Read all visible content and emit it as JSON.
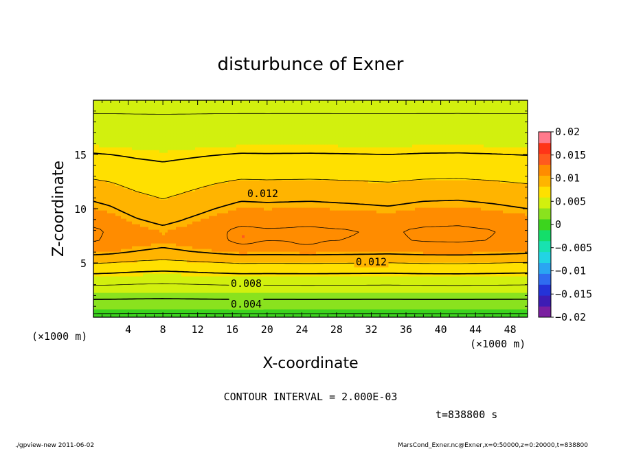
{
  "chart_data": {
    "type": "heatmap",
    "title": "disturbunce of Exner",
    "xlabel": "X-coordinate",
    "ylabel": "Z-coordinate",
    "x_unit": "(×1000 m)",
    "y_unit": "(×1000 m)",
    "xlim": [
      0,
      50
    ],
    "ylim": [
      0,
      20
    ],
    "xticks": [
      4,
      8,
      12,
      16,
      20,
      24,
      28,
      32,
      36,
      40,
      44,
      48
    ],
    "yticks": [
      5,
      10,
      15
    ],
    "contour_interval_label": "CONTOUR INTERVAL = 2.000E-03",
    "time_label": "t=838800 s",
    "contour_labels": [
      {
        "text": "0.012",
        "x": 19.5,
        "y": 11.4
      },
      {
        "text": "0.012",
        "x": 32.0,
        "y": 5.1
      },
      {
        "text": "0.008",
        "x": 17.6,
        "y": 3.1
      },
      {
        "text": "0.004",
        "x": 17.6,
        "y": 1.2
      }
    ],
    "colorbar": {
      "levels": [
        -0.02,
        -0.0175,
        -0.015,
        -0.0125,
        -0.01,
        -0.0075,
        -0.005,
        -0.0025,
        0,
        0.0025,
        0.005,
        0.0075,
        0.01,
        0.0125,
        0.015,
        0.0175,
        0.02
      ],
      "tick_labels": [
        "0.02",
        "0.015",
        "0.01",
        "0.005",
        "0",
        "−0.005",
        "−0.01",
        "−0.015",
        "−0.02"
      ],
      "colors": [
        "#7a1fa0",
        "#3d1cb4",
        "#2433d8",
        "#2f6cf0",
        "#2aa5f2",
        "#22d4e4",
        "#18e2b0",
        "#14de6a",
        "#3cd41e",
        "#8ae21e",
        "#d2f00e",
        "#ffe000",
        "#ffb400",
        "#ff8c00",
        "#ff5a1e",
        "#ff3418",
        "#ff7a8c"
      ]
    },
    "field_profile": {
      "z": [
        0,
        1,
        2,
        3,
        4,
        5,
        6,
        7,
        8,
        9,
        10,
        11,
        12,
        13,
        14,
        15,
        16,
        17,
        18,
        19,
        20
      ],
      "value": [
        0.0015,
        0.003,
        0.0045,
        0.006,
        0.0078,
        0.0098,
        0.0122,
        0.0135,
        0.0135,
        0.0127,
        0.0118,
        0.011,
        0.0101,
        0.0093,
        0.0086,
        0.0079,
        0.0073,
        0.0067,
        0.0063,
        0.0059,
        0.0056
      ]
    },
    "x_modulation": {
      "x": [
        0,
        2,
        5,
        8,
        10,
        14,
        17,
        20,
        25,
        30,
        34,
        38,
        42,
        46,
        50
      ],
      "delta": [
        0.0008,
        0.0004,
        -0.0006,
        -0.0012,
        -0.0008,
        0.0002,
        0.0008,
        0.0007,
        0.0008,
        0.0006,
        0.0004,
        0.0008,
        0.0009,
        0.0006,
        0.0002
      ]
    },
    "local_maxima": [
      {
        "x": 17.3,
        "y": 7.4
      },
      {
        "x": 24.5,
        "y": 7.3
      }
    ]
  },
  "footer": {
    "left": "./gpview-new   2011-06-02",
    "right": "MarsCond_Exner.nc@Exner,x=0:50000,z=0:20000,t=838800"
  }
}
